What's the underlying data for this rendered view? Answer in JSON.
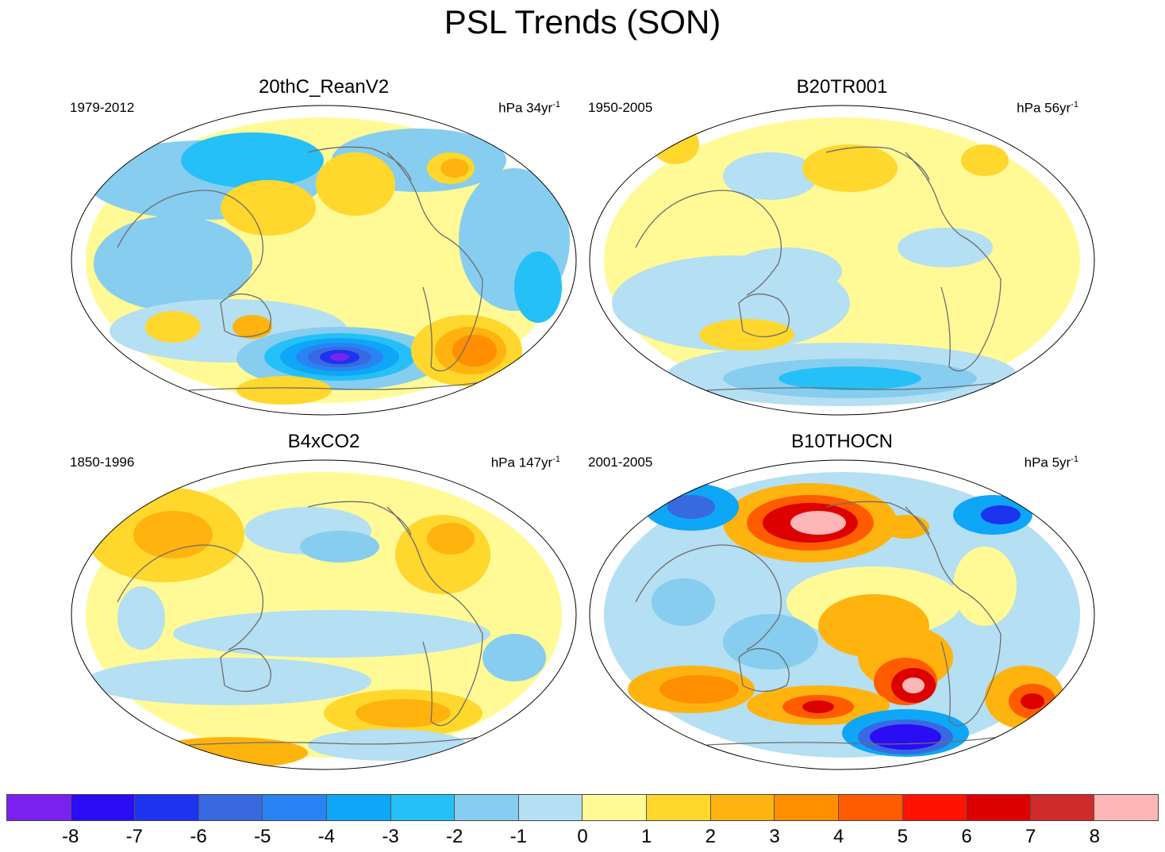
{
  "title": "PSL Trends (SON)",
  "panels": [
    {
      "title": "20thC_ReanV2",
      "period": "1979-2012",
      "units_text": "hPa 34yr",
      "units_sup": "-1"
    },
    {
      "title": "B20TR001",
      "period": "1950-2005",
      "units_text": "hPa 56yr",
      "units_sup": "-1"
    },
    {
      "title": "B4xCO2",
      "period": "1850-1996",
      "units_text": "hPa 147yr",
      "units_sup": "-1"
    },
    {
      "title": "B10THOCN",
      "period": "2001-2005",
      "units_text": "hPa 5yr",
      "units_sup": "-1"
    }
  ],
  "colorbar": {
    "colors": [
      "#7b22f0",
      "#2a0cf5",
      "#1c34ee",
      "#3869e0",
      "#2a83f5",
      "#0ea6f6",
      "#25c0f8",
      "#86cdf0",
      "#b5dff2",
      "#fffa96",
      "#ffd72d",
      "#ffb30f",
      "#ff8e00",
      "#ff5c00",
      "#ff1300",
      "#dd0000",
      "#d02a2a",
      "#ffb6b6"
    ],
    "labels": [
      "-8",
      "-7",
      "-6",
      "-5",
      "-4",
      "-3",
      "-2",
      "-1",
      "0",
      "1",
      "2",
      "3",
      "4",
      "5",
      "6",
      "7",
      "8"
    ]
  }
}
